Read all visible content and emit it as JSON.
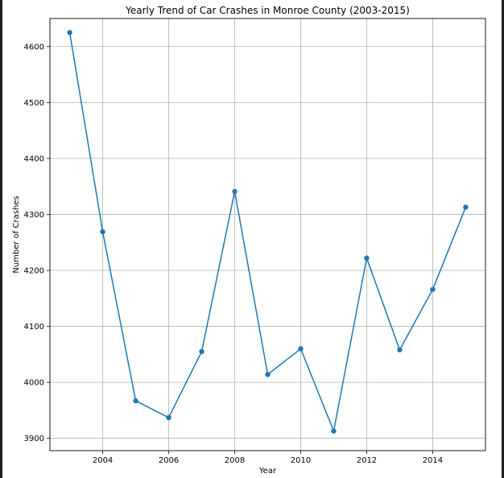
{
  "chart_data": {
    "type": "line",
    "title": "Yearly Trend of Car Crashes in Monroe County (2003-2015)",
    "xlabel": "Year",
    "ylabel": "Number of Crashes",
    "x": [
      2003,
      2004,
      2005,
      2006,
      2007,
      2008,
      2009,
      2010,
      2011,
      2012,
      2013,
      2014,
      2015
    ],
    "series": [
      {
        "values": [
          4625,
          4269,
          3967,
          3937,
          4055,
          4341,
          4014,
          4060,
          3913,
          4222,
          4058,
          4166,
          4313
        ],
        "color": "#1f77b4"
      }
    ],
    "xlim": [
      2002.4,
      2015.6
    ],
    "ylim": [
      3878,
      4650
    ],
    "xticks": [
      2004,
      2006,
      2008,
      2010,
      2012,
      2014
    ],
    "yticks": [
      3900,
      4000,
      4100,
      4200,
      4300,
      4400,
      4500,
      4600
    ],
    "grid": true,
    "marker": "circle"
  }
}
